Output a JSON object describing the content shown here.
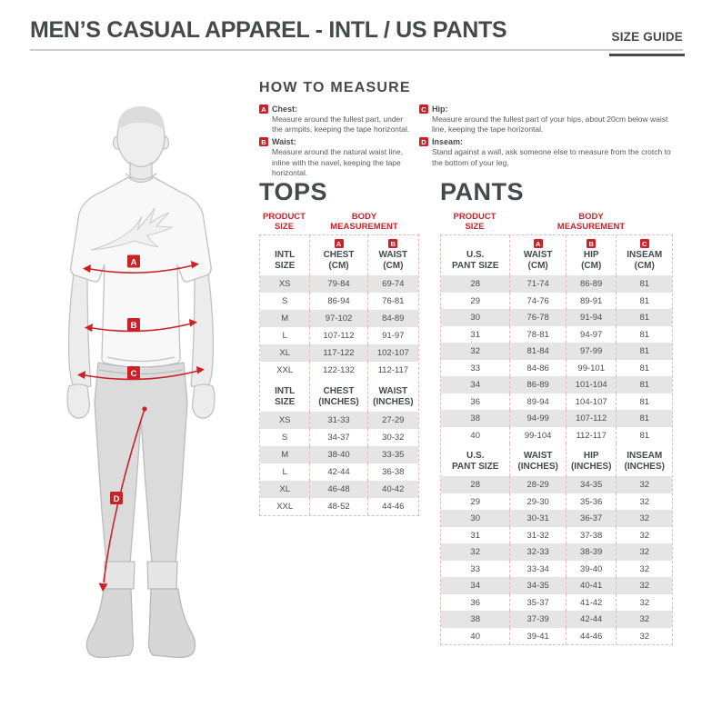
{
  "header": {
    "title": "MEN’S CASUAL APPAREL - INTL / US PANTS",
    "size_guide_label": "SIZE GUIDE"
  },
  "how_to_measure": {
    "title": "HOW TO MEASURE",
    "items": [
      {
        "letter": "A",
        "label": "Chest:",
        "text": "Measure around the fullest part, under the armpits, keeping the tape horizontal."
      },
      {
        "letter": "B",
        "label": "Waist:",
        "text": "Measure around the natural waist line, inline with the navel, keeping the tape horizontal."
      },
      {
        "letter": "C",
        "label": "Hip:",
        "text": "Measure around the fullest part of your hips, about 20cm below waist line, keeping the tape horizontal."
      },
      {
        "letter": "D",
        "label": "Inseam:",
        "text": "Stand against a wall, ask someone else to measure from the crotch to the bottom of your leg."
      }
    ]
  },
  "figure": {
    "markers": [
      "A",
      "B",
      "C",
      "D"
    ]
  },
  "tops": {
    "title": "TOPS",
    "product_size_label": "PRODUCT\nSIZE",
    "body_measurement_label": "BODY\nMEASUREMENT",
    "cm": {
      "badges": [
        "A",
        "B"
      ],
      "headers": [
        "INTL\nSIZE",
        "CHEST\n(CM)",
        "WAIST\n(CM)"
      ],
      "rows": [
        [
          "XS",
          "79-84",
          "69-74"
        ],
        [
          "S",
          "86-94",
          "76-81"
        ],
        [
          "M",
          "97-102",
          "84-89"
        ],
        [
          "L",
          "107-112",
          "91-97"
        ],
        [
          "XL",
          "117-122",
          "102-107"
        ],
        [
          "XXL",
          "122-132",
          "112-117"
        ]
      ]
    },
    "inches": {
      "headers": [
        "INTL\nSIZE",
        "CHEST\n(INCHES)",
        "WAIST\n(INCHES)"
      ],
      "rows": [
        [
          "XS",
          "31-33",
          "27-29"
        ],
        [
          "S",
          "34-37",
          "30-32"
        ],
        [
          "M",
          "38-40",
          "33-35"
        ],
        [
          "L",
          "42-44",
          "36-38"
        ],
        [
          "XL",
          "46-48",
          "40-42"
        ],
        [
          "XXL",
          "48-52",
          "44-46"
        ]
      ]
    }
  },
  "pants": {
    "title": "PANTS",
    "product_size_label": "PRODUCT\nSIZE",
    "body_measurement_label": "BODY\nMEASUREMENT",
    "cm": {
      "badges": [
        "A",
        "B",
        "C"
      ],
      "headers": [
        "U.S.\nPANT SIZE",
        "WAIST\n(CM)",
        "HIP\n(CM)",
        "INSEAM\n(CM)"
      ],
      "rows": [
        [
          "28",
          "71-74",
          "86-89",
          "81"
        ],
        [
          "29",
          "74-76",
          "89-91",
          "81"
        ],
        [
          "30",
          "76-78",
          "91-94",
          "81"
        ],
        [
          "31",
          "78-81",
          "94-97",
          "81"
        ],
        [
          "32",
          "81-84",
          "97-99",
          "81"
        ],
        [
          "33",
          "84-86",
          "99-101",
          "81"
        ],
        [
          "34",
          "86-89",
          "101-104",
          "81"
        ],
        [
          "36",
          "89-94",
          "104-107",
          "81"
        ],
        [
          "38",
          "94-99",
          "107-112",
          "81"
        ],
        [
          "40",
          "99-104",
          "112-117",
          "81"
        ]
      ]
    },
    "inches": {
      "headers": [
        "U.S.\nPANT SIZE",
        "WAIST\n(INCHES)",
        "HIP\n(INCHES)",
        "INSEAM\n(INCHES)"
      ],
      "rows": [
        [
          "28",
          "28-29",
          "34-35",
          "32"
        ],
        [
          "29",
          "29-30",
          "35-36",
          "32"
        ],
        [
          "30",
          "30-31",
          "36-37",
          "32"
        ],
        [
          "31",
          "31-32",
          "37-38",
          "32"
        ],
        [
          "32",
          "32-33",
          "38-39",
          "32"
        ],
        [
          "33",
          "33-34",
          "39-40",
          "32"
        ],
        [
          "34",
          "34-35",
          "40-41",
          "32"
        ],
        [
          "36",
          "35-37",
          "41-42",
          "32"
        ],
        [
          "38",
          "37-39",
          "42-44",
          "32"
        ],
        [
          "40",
          "39-41",
          "44-46",
          "32"
        ]
      ]
    }
  },
  "colors": {
    "accent_red": "#cb2127",
    "heading_dark": "#434a4e",
    "row_alt_gray": "#e5e5e5"
  }
}
